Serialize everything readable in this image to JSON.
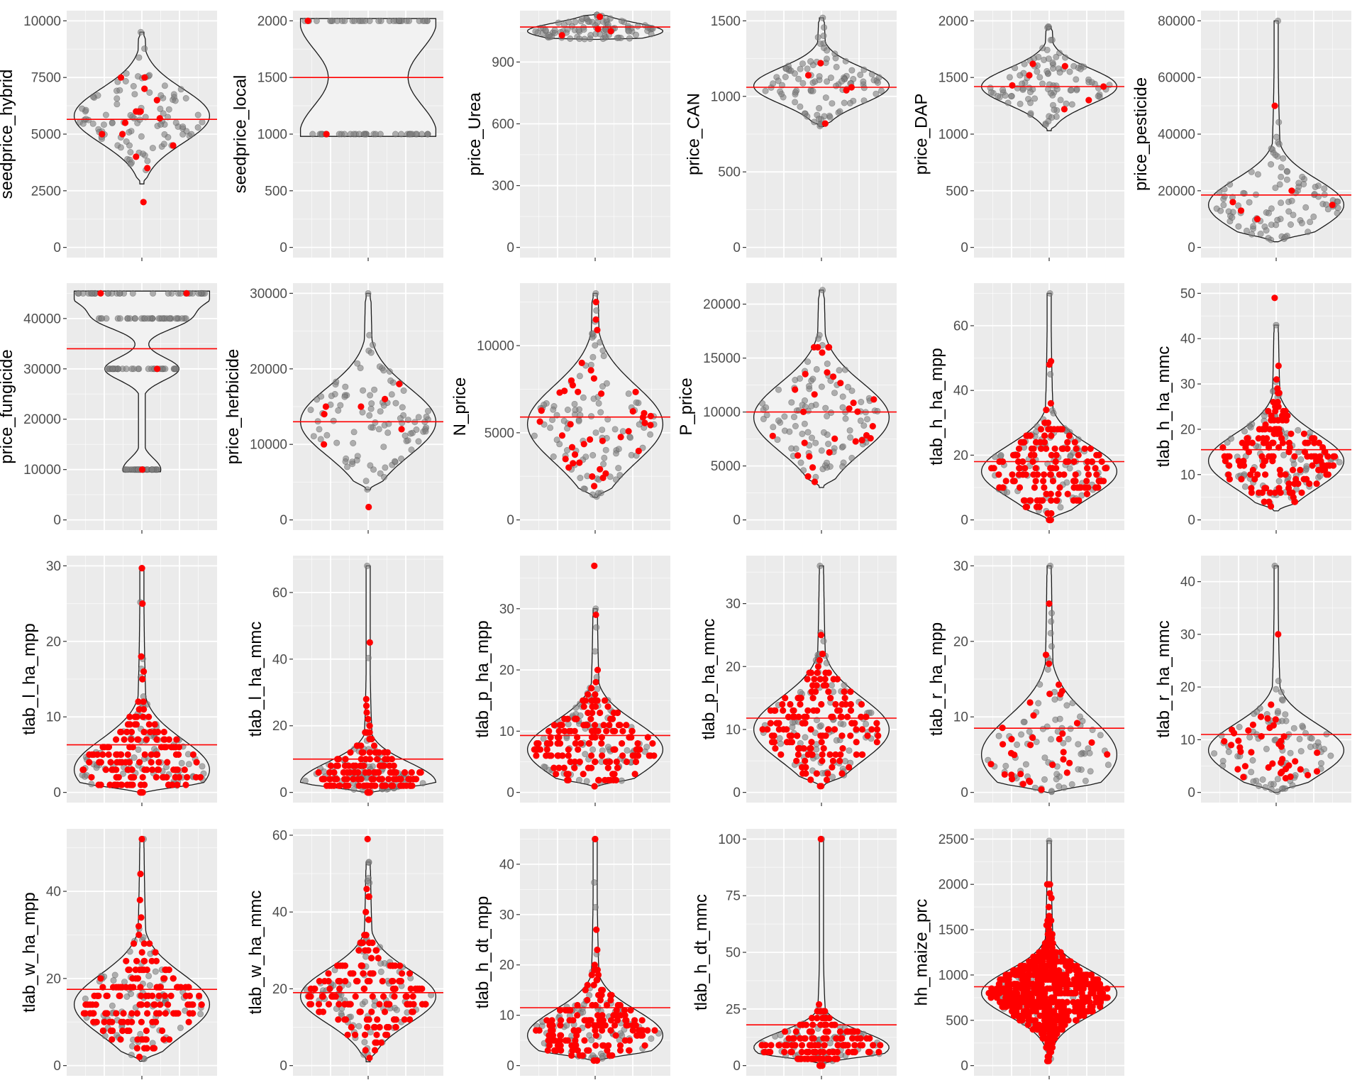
{
  "colors": {
    "panel": "#ebebeb",
    "grid_major": "#ffffff",
    "violin_fill": "#f2f2f2",
    "violin_stroke": "#1a1a1a",
    "point_gray": "#7f7f7f",
    "point_red": "#ff0000",
    "mean_line": "#ff0000"
  },
  "chart_data": [
    {
      "type": "violin",
      "ylabel": "seedprice_hybrid",
      "ylim": [
        0,
        10000
      ],
      "yticks": [
        0,
        2500,
        5000,
        7500,
        10000
      ],
      "mean": 5650,
      "violin": "unimodal",
      "data_range": [
        2800,
        9500
      ],
      "mode": 5800,
      "spread": 1200,
      "n_gray": 100,
      "red_points": [
        2000,
        3500,
        4000,
        4500,
        5000,
        5000,
        5500,
        5700,
        6000,
        6000,
        6000,
        6500,
        7000,
        7500,
        7500
      ]
    },
    {
      "type": "violin",
      "ylabel": "seedprice_local",
      "ylim": [
        0,
        2000
      ],
      "yticks": [
        0,
        500,
        1000,
        1500,
        2000
      ],
      "mean": 1500,
      "violin": "bimodal",
      "levels": [
        1000,
        2000
      ],
      "red_points": [
        1000,
        2000
      ]
    },
    {
      "type": "violin",
      "ylabel": "price_Urea",
      "ylim": [
        0,
        1100
      ],
      "yticks": [
        0,
        300,
        600,
        900
      ],
      "mean": 1070,
      "violin": "unimodal",
      "data_range": [
        1010,
        1130
      ],
      "mode": 1050,
      "spread": 40,
      "n_gray": 90,
      "red_points": [
        1030,
        1050,
        1060,
        1120
      ]
    },
    {
      "type": "violin",
      "ylabel": "price_CAN",
      "ylim": [
        0,
        1500
      ],
      "yticks": [
        0,
        500,
        1000,
        1500
      ],
      "mean": 1060,
      "violin": "unimodal",
      "data_range": [
        800,
        1520
      ],
      "mode": 1070,
      "spread": 120,
      "n_gray": 100,
      "red_points": [
        820,
        1040,
        1060,
        1140,
        1220
      ]
    },
    {
      "type": "violin",
      "ylabel": "price_DAP",
      "ylim": [
        0,
        2000
      ],
      "yticks": [
        0,
        500,
        1000,
        1500,
        2000
      ],
      "mean": 1420,
      "violin": "unimodal",
      "data_range": [
        1030,
        1950
      ],
      "mode": 1420,
      "spread": 160,
      "n_gray": 100,
      "red_points": [
        1220,
        1300,
        1420,
        1430,
        1520,
        1600,
        1620
      ]
    },
    {
      "type": "violin",
      "ylabel": "price_pesticide",
      "ylim": [
        0,
        80000
      ],
      "yticks": [
        0,
        20000,
        40000,
        60000,
        80000
      ],
      "mean": 18500,
      "violin": "unimodal",
      "data_range": [
        2000,
        80000
      ],
      "mode": 15000,
      "spread": 9000,
      "n_gray": 100,
      "red_points": [
        10000,
        13000,
        15000,
        16000,
        20000,
        50000
      ]
    },
    {
      "type": "violin",
      "ylabel": "price_fungicide",
      "ylim": [
        0,
        45000
      ],
      "yticks": [
        0,
        10000,
        20000,
        30000,
        40000
      ],
      "mean": 34000,
      "violin": "levels",
      "levels": [
        10000,
        30000,
        40000,
        45000
      ],
      "red_points": [
        10000,
        30000,
        45000,
        45000
      ]
    },
    {
      "type": "violin",
      "ylabel": "price_herbicide",
      "ylim": [
        0,
        30000
      ],
      "yticks": [
        0,
        10000,
        20000,
        30000
      ],
      "mean": 13000,
      "violin": "unimodal",
      "data_range": [
        4000,
        30000
      ],
      "mode": 13000,
      "spread": 4500,
      "n_gray": 100,
      "red_points": [
        1700,
        10000,
        12000,
        14000,
        15000,
        15000,
        16000,
        18000
      ]
    },
    {
      "type": "violin",
      "ylabel": "N_price",
      "ylim": [
        0,
        13000
      ],
      "yticks": [
        0,
        5000,
        10000
      ],
      "mean": 5900,
      "violin": "unimodal",
      "data_range": [
        1300,
        13000
      ],
      "mode": 5500,
      "spread": 2200,
      "n_gray": 100,
      "n_red": 40,
      "red_max": 12500
    },
    {
      "type": "violin",
      "ylabel": "P_price",
      "ylim": [
        0,
        21000
      ],
      "yticks": [
        0,
        5000,
        10000,
        15000,
        20000
      ],
      "mean": 10000,
      "violin": "unimodal",
      "data_range": [
        3000,
        21300
      ],
      "mode": 9500,
      "spread": 3200,
      "n_gray": 100,
      "n_red": 30,
      "red_max": 16000
    },
    {
      "type": "violin",
      "ylabel": "tlab_h_ha_mpp",
      "ylim": [
        0,
        70
      ],
      "yticks": [
        0,
        20,
        40,
        60
      ],
      "mean": 18,
      "violin": "unimodal",
      "data_range": [
        0,
        70
      ],
      "mode": 15,
      "spread": 8,
      "n_gray": 80,
      "n_red": 150,
      "red_max": 49
    },
    {
      "type": "violin",
      "ylabel": "tlab_h_ha_mmc",
      "ylim": [
        0,
        50
      ],
      "yticks": [
        0,
        10,
        20,
        30,
        40,
        50
      ],
      "mean": 15.5,
      "violin": "unimodal",
      "data_range": [
        2,
        43
      ],
      "mode": 13,
      "spread": 6,
      "n_gray": 80,
      "n_red": 150,
      "red_max": 49
    },
    {
      "type": "violin",
      "ylabel": "tlab_l_ha_mpp",
      "ylim": [
        0,
        30
      ],
      "yticks": [
        0,
        10,
        20,
        30
      ],
      "mean": 6.3,
      "violin": "unimodal",
      "data_range": [
        0,
        29.7
      ],
      "mode": 3,
      "spread": 4,
      "n_gray": 80,
      "n_red": 150,
      "red_max": 29.7
    },
    {
      "type": "violin",
      "ylabel": "tlab_l_ha_mmc",
      "ylim": [
        0,
        68
      ],
      "yticks": [
        0,
        20,
        40,
        60
      ],
      "mean": 10,
      "violin": "unimodal",
      "data_range": [
        0,
        68
      ],
      "mode": 3,
      "spread": 6,
      "n_gray": 80,
      "n_red": 150,
      "red_max": 45
    },
    {
      "type": "violin",
      "ylabel": "tlab_p_ha_mpp",
      "ylim": [
        0,
        37
      ],
      "yticks": [
        0,
        10,
        20,
        30
      ],
      "mean": 9.3,
      "violin": "unimodal",
      "data_range": [
        1,
        30
      ],
      "mode": 7,
      "spread": 4.5,
      "n_gray": 80,
      "n_red": 150,
      "red_max": 37
    },
    {
      "type": "violin",
      "ylabel": "tlab_p_ha_mmc",
      "ylim": [
        0,
        36
      ],
      "yticks": [
        0,
        10,
        20,
        30
      ],
      "mean": 11.8,
      "violin": "unimodal",
      "data_range": [
        1,
        36
      ],
      "mode": 10,
      "spread": 5,
      "n_gray": 80,
      "n_red": 150,
      "red_max": 25
    },
    {
      "type": "violin",
      "ylabel": "tlab_r_ha_mpp",
      "ylim": [
        0,
        30
      ],
      "yticks": [
        0,
        10,
        20,
        30
      ],
      "mean": 8.5,
      "violin": "unimodal",
      "data_range": [
        0,
        30
      ],
      "mode": 5,
      "spread": 5,
      "n_gray": 80,
      "n_red": 35,
      "red_max": 25
    },
    {
      "type": "violin",
      "ylabel": "tlab_r_ha_mmc",
      "ylim": [
        0,
        43
      ],
      "yticks": [
        0,
        10,
        20,
        30,
        40
      ],
      "mean": 11,
      "violin": "unimodal",
      "data_range": [
        0,
        43
      ],
      "mode": 8,
      "spread": 5,
      "n_gray": 80,
      "n_red": 40,
      "red_max": 30
    },
    {
      "type": "violin",
      "ylabel": "tlab_w_ha_mpp",
      "ylim": [
        0,
        52
      ],
      "yticks": [
        0,
        20,
        40
      ],
      "mean": 17.5,
      "violin": "unimodal",
      "data_range": [
        1,
        52
      ],
      "mode": 14,
      "spread": 7,
      "n_gray": 80,
      "n_red": 150,
      "red_max": 52
    },
    {
      "type": "violin",
      "ylabel": "tlab_w_ha_mmc",
      "ylim": [
        0,
        59
      ],
      "yticks": [
        0,
        20,
        40,
        60
      ],
      "mean": 19,
      "violin": "unimodal",
      "data_range": [
        1,
        53
      ],
      "mode": 18,
      "spread": 7,
      "n_gray": 80,
      "n_red": 150,
      "red_max": 59
    },
    {
      "type": "violin",
      "ylabel": "tlab_h_dt_mpp",
      "ylim": [
        0,
        45
      ],
      "yticks": [
        0,
        10,
        20,
        30,
        40
      ],
      "mean": 11.5,
      "violin": "unimodal",
      "data_range": [
        1,
        45
      ],
      "mode": 6,
      "spread": 5,
      "n_gray": 80,
      "n_red": 150,
      "red_max": 45
    },
    {
      "type": "violin",
      "ylabel": "tlab_h_dt_mmc",
      "ylim": [
        0,
        100
      ],
      "yticks": [
        0,
        25,
        50,
        75,
        100
      ],
      "mean": 18,
      "violin": "unimodal",
      "data_range": [
        1,
        100
      ],
      "mode": 8,
      "spread": 7,
      "n_gray": 60,
      "n_red": 150,
      "red_max": 100
    },
    {
      "type": "violin",
      "ylabel": "hh_maize_prc",
      "ylim": [
        0,
        2500
      ],
      "yticks": [
        0,
        500,
        1000,
        1500,
        2000,
        2500
      ],
      "mean": 870,
      "violin": "unimodal",
      "data_range": [
        50,
        2480
      ],
      "mode": 800,
      "spread": 250,
      "n_gray": 60,
      "n_red": 600,
      "red_max": 2000
    }
  ]
}
